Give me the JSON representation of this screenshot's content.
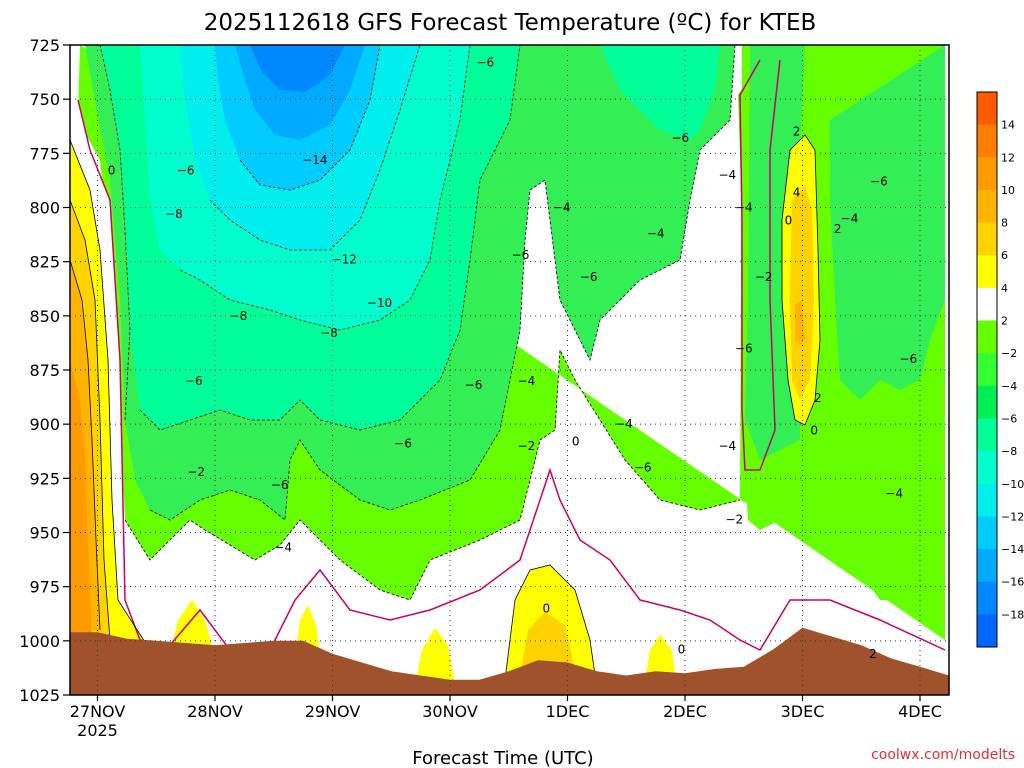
{
  "chart_data": {
    "type": "heatmap",
    "title": "2025112618 GFS Forecast Temperature (ºC) for KTEB",
    "xlabel": "Forecast Time (UTC)",
    "ylabel": "",
    "credit": "coolwx.com/modelts",
    "y_ticks": [
      "725",
      "750",
      "775",
      "800",
      "825",
      "850",
      "875",
      "900",
      "925",
      "950",
      "975",
      "1000",
      "1025"
    ],
    "x_ticks": [
      "27NOV",
      "28NOV",
      "29NOV",
      "30NOV",
      "1DEC",
      "2DEC",
      "3DEC",
      "4DEC"
    ],
    "x_tick_sub": "2025",
    "colorbar": {
      "levels": [
        14,
        12,
        10,
        8,
        6,
        4,
        2,
        -2,
        -4,
        -6,
        -8,
        -10,
        -12,
        -14,
        -16,
        -18
      ],
      "colors": [
        "#ff5a00",
        "#ff7d00",
        "#ff9b00",
        "#ffb400",
        "#ffd200",
        "#ffff00",
        "#ffffff",
        "#66ff00",
        "#33ff33",
        "#00ee55",
        "#00ff99",
        "#00ffcc",
        "#00eeee",
        "#00ccff",
        "#00aaff",
        "#0088ff",
        "#0066ff"
      ]
    },
    "contour_labels": [
      {
        "text": "0",
        "p": 783,
        "day": 0.12
      },
      {
        "text": "-6",
        "p": 783,
        "day": 0.75
      },
      {
        "text": "-8",
        "p": 803,
        "day": 0.65
      },
      {
        "text": "-14",
        "p": 778,
        "day": 1.85
      },
      {
        "text": "-12",
        "p": 824,
        "day": 2.1
      },
      {
        "text": "-10",
        "p": 844,
        "day": 2.4
      },
      {
        "text": "-8",
        "p": 850,
        "day": 1.2
      },
      {
        "text": "-8",
        "p": 858,
        "day": 1.97
      },
      {
        "text": "-6",
        "p": 880,
        "day": 0.82
      },
      {
        "text": "-6",
        "p": 733,
        "day": 3.3
      },
      {
        "text": "-6",
        "p": 822,
        "day": 3.6
      },
      {
        "text": "-6",
        "p": 882,
        "day": 3.2
      },
      {
        "text": "-6",
        "p": 909,
        "day": 2.6
      },
      {
        "text": "-6",
        "p": 928,
        "day": 1.55
      },
      {
        "text": "-4",
        "p": 880,
        "day": 3.65
      },
      {
        "text": "-4",
        "p": 800,
        "day": 3.95
      },
      {
        "text": "-2",
        "p": 910,
        "day": 3.65
      },
      {
        "text": "0",
        "p": 908,
        "day": 4.07
      },
      {
        "text": "-2",
        "p": 922,
        "day": 0.84
      },
      {
        "text": "-4",
        "p": 957,
        "day": 1.58
      },
      {
        "text": "-6",
        "p": 832,
        "day": 4.18
      },
      {
        "text": "-4",
        "p": 812,
        "day": 4.75
      },
      {
        "text": "-6",
        "p": 768,
        "day": 4.96
      },
      {
        "text": "-4",
        "p": 900,
        "day": 4.48
      },
      {
        "text": "-6",
        "p": 920,
        "day": 4.64
      },
      {
        "text": "-4",
        "p": 785,
        "day": 5.36
      },
      {
        "text": "-4",
        "p": 800,
        "day": 5.5
      },
      {
        "text": "-2",
        "p": 832,
        "day": 5.67
      },
      {
        "text": "-6",
        "p": 865,
        "day": 5.5
      },
      {
        "text": "-4",
        "p": 910,
        "day": 5.36
      },
      {
        "text": "-2",
        "p": 944,
        "day": 5.42
      },
      {
        "text": "0",
        "p": 985,
        "day": 3.82
      },
      {
        "text": "0",
        "p": 1004,
        "day": 4.97
      },
      {
        "text": "2",
        "p": 765,
        "day": 5.95
      },
      {
        "text": "4",
        "p": 793,
        "day": 5.95
      },
      {
        "text": "0",
        "p": 806,
        "day": 5.88
      },
      {
        "text": "-4",
        "p": 805,
        "day": 6.4
      },
      {
        "text": "2",
        "p": 810,
        "day": 6.3
      },
      {
        "text": "2",
        "p": 888,
        "day": 6.13
      },
      {
        "text": "0",
        "p": 903,
        "day": 6.1
      },
      {
        "text": "-6",
        "p": 788,
        "day": 6.65
      },
      {
        "text": "-6",
        "p": 870,
        "day": 6.9
      },
      {
        "text": "-4",
        "p": 932,
        "day": 6.78
      },
      {
        "text": "2",
        "p": 1006,
        "day": 6.6
      }
    ],
    "ground_pressure": [
      {
        "day": 0.0,
        "p": 996
      },
      {
        "day": 0.25,
        "p": 999
      },
      {
        "day": 0.5,
        "p": 1000
      },
      {
        "day": 0.75,
        "p": 1001
      },
      {
        "day": 1.0,
        "p": 1002
      },
      {
        "day": 1.25,
        "p": 1001
      },
      {
        "day": 1.5,
        "p": 1000
      },
      {
        "day": 1.75,
        "p": 1000
      },
      {
        "day": 2.0,
        "p": 1006
      },
      {
        "day": 2.25,
        "p": 1010
      },
      {
        "day": 2.5,
        "p": 1014
      },
      {
        "day": 2.75,
        "p": 1016
      },
      {
        "day": 3.0,
        "p": 1018
      },
      {
        "day": 3.25,
        "p": 1018
      },
      {
        "day": 3.5,
        "p": 1014
      },
      {
        "day": 3.75,
        "p": 1009
      },
      {
        "day": 4.0,
        "p": 1010
      },
      {
        "day": 4.25,
        "p": 1014
      },
      {
        "day": 4.5,
        "p": 1016
      },
      {
        "day": 4.75,
        "p": 1014
      },
      {
        "day": 5.0,
        "p": 1015
      },
      {
        "day": 5.25,
        "p": 1013
      },
      {
        "day": 5.5,
        "p": 1012
      },
      {
        "day": 5.75,
        "p": 1004
      },
      {
        "day": 6.0,
        "p": 994
      },
      {
        "day": 6.25,
        "p": 998
      },
      {
        "day": 6.5,
        "p": 1002
      },
      {
        "day": 6.75,
        "p": 1008
      },
      {
        "day": 7.0,
        "p": 1012
      },
      {
        "day": 7.25,
        "p": 1016
      }
    ]
  }
}
